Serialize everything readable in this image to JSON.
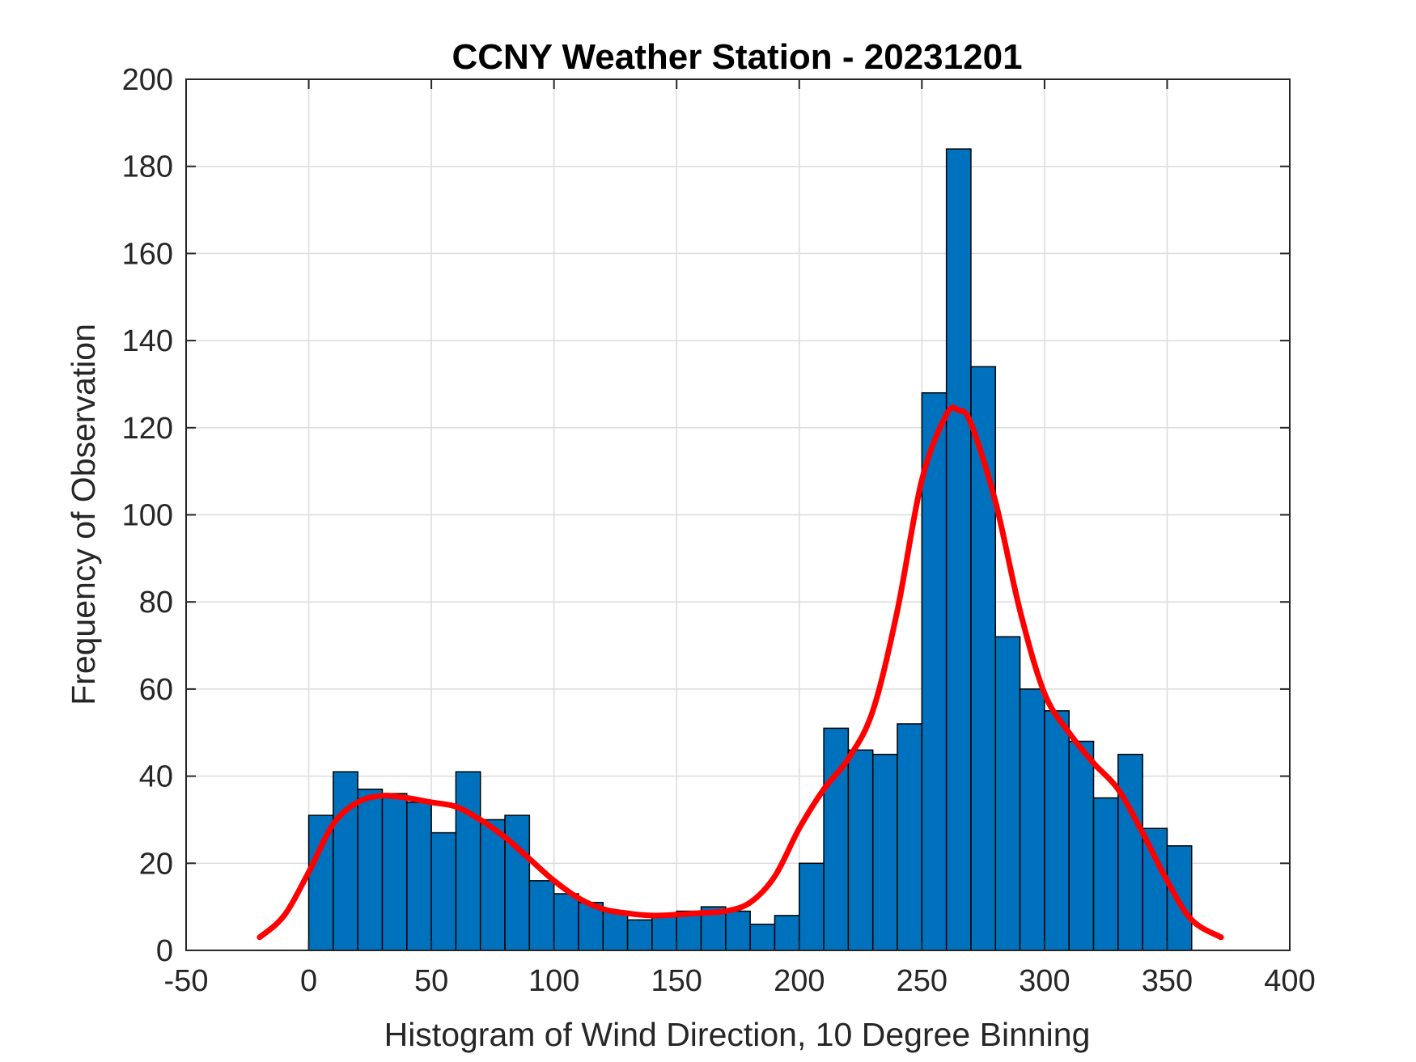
{
  "chart_data": {
    "type": "bar",
    "title": "CCNY Weather Station - 20231201",
    "xlabel": "Histogram of Wind Direction, 10 Degree Binning",
    "ylabel": "Frequency of Observation",
    "xlim": [
      -50,
      400
    ],
    "ylim": [
      0,
      200
    ],
    "xticks": [
      "-50",
      "0",
      "50",
      "100",
      "150",
      "200",
      "250",
      "300",
      "350",
      "400"
    ],
    "yticks": [
      "0",
      "20",
      "40",
      "60",
      "80",
      "100",
      "120",
      "140",
      "160",
      "180",
      "200"
    ],
    "grid": true,
    "bin_width": 10,
    "bins": [
      {
        "start": 0,
        "count": 31
      },
      {
        "start": 10,
        "count": 41
      },
      {
        "start": 20,
        "count": 37
      },
      {
        "start": 30,
        "count": 36
      },
      {
        "start": 40,
        "count": 34
      },
      {
        "start": 50,
        "count": 27
      },
      {
        "start": 60,
        "count": 41
      },
      {
        "start": 70,
        "count": 30
      },
      {
        "start": 80,
        "count": 31
      },
      {
        "start": 90,
        "count": 16
      },
      {
        "start": 100,
        "count": 13
      },
      {
        "start": 110,
        "count": 11
      },
      {
        "start": 120,
        "count": 9
      },
      {
        "start": 130,
        "count": 7
      },
      {
        "start": 140,
        "count": 8
      },
      {
        "start": 150,
        "count": 9
      },
      {
        "start": 160,
        "count": 10
      },
      {
        "start": 170,
        "count": 9
      },
      {
        "start": 180,
        "count": 6
      },
      {
        "start": 190,
        "count": 8
      },
      {
        "start": 200,
        "count": 20
      },
      {
        "start": 210,
        "count": 51
      },
      {
        "start": 220,
        "count": 46
      },
      {
        "start": 230,
        "count": 45
      },
      {
        "start": 240,
        "count": 52
      },
      {
        "start": 250,
        "count": 128
      },
      {
        "start": 260,
        "count": 184
      },
      {
        "start": 270,
        "count": 134
      },
      {
        "start": 280,
        "count": 72
      },
      {
        "start": 290,
        "count": 60
      },
      {
        "start": 300,
        "count": 55
      },
      {
        "start": 310,
        "count": 48
      },
      {
        "start": 320,
        "count": 35
      },
      {
        "start": 330,
        "count": 45
      },
      {
        "start": 340,
        "count": 28
      },
      {
        "start": 350,
        "count": 24
      }
    ],
    "fit_curve": {
      "type": "line",
      "points": [
        [
          -20,
          3
        ],
        [
          -10,
          8
        ],
        [
          0,
          18
        ],
        [
          10,
          29
        ],
        [
          20,
          34
        ],
        [
          30,
          35.5
        ],
        [
          40,
          35
        ],
        [
          50,
          34
        ],
        [
          60,
          33
        ],
        [
          70,
          30
        ],
        [
          80,
          26
        ],
        [
          90,
          21
        ],
        [
          100,
          16
        ],
        [
          110,
          12
        ],
        [
          120,
          9.5
        ],
        [
          130,
          8.5
        ],
        [
          140,
          8
        ],
        [
          150,
          8.2
        ],
        [
          160,
          8.6
        ],
        [
          170,
          9
        ],
        [
          180,
          11
        ],
        [
          190,
          17
        ],
        [
          200,
          28
        ],
        [
          210,
          37
        ],
        [
          220,
          44
        ],
        [
          230,
          55
        ],
        [
          240,
          78
        ],
        [
          250,
          108
        ],
        [
          260,
          123
        ],
        [
          265,
          124
        ],
        [
          270,
          121
        ],
        [
          280,
          103
        ],
        [
          290,
          78
        ],
        [
          300,
          59
        ],
        [
          310,
          50
        ],
        [
          320,
          43
        ],
        [
          330,
          37
        ],
        [
          340,
          27
        ],
        [
          350,
          16
        ],
        [
          360,
          7
        ],
        [
          372,
          3
        ]
      ]
    },
    "colors": {
      "bar_fill": "#0072bd",
      "bar_edge": "#000000",
      "curve": "#ff0000",
      "grid": "#dcdcdc",
      "axis": "#262626"
    }
  }
}
